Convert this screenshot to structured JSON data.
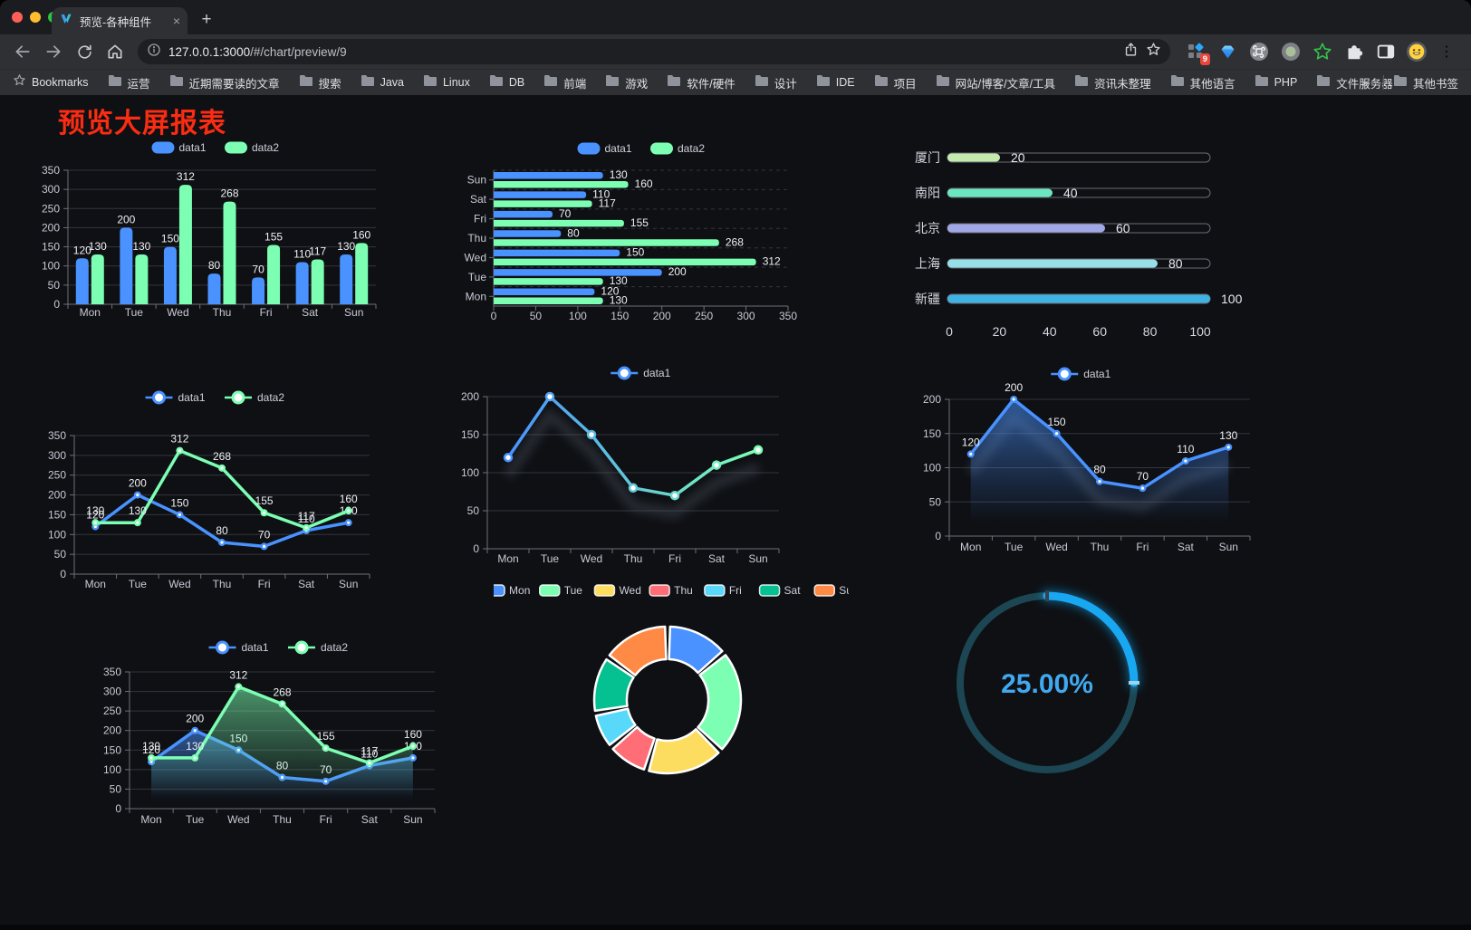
{
  "window": {
    "tab_title": "预览-各种组件",
    "url": {
      "host": "127.0.0.1:3000",
      "path": "/#/chart/preview/9"
    },
    "extension_badge": "9",
    "glyphs": {
      "new_tab": "+",
      "close_tab": "×",
      "kebab": "⋮"
    },
    "bookmarks": {
      "root": "Bookmarks",
      "folders": [
        "运营",
        "近期需要读的文章",
        "搜索",
        "Java",
        "Linux",
        "DB",
        "前端",
        "游戏",
        "软件/硬件",
        "设计",
        "IDE",
        "项目",
        "网站/博客/文章/工具",
        "资讯未整理",
        "其他语言",
        "PHP",
        "文件服务器"
      ],
      "overflow": "»",
      "other": "其他书签"
    }
  },
  "page": {
    "title": "预览大屏报表",
    "title_color": "#fa2c12"
  },
  "theme": {
    "page_bg": "#0e1014",
    "axis_label_color": "#c9cad4",
    "value_label_color": "#eef0f4",
    "grid_line_color": "#34353e",
    "axis_line_color": "#6e7079",
    "legend_text_color": "#cfd0da"
  },
  "chart_data": [
    {
      "id": "bar-grouped",
      "type": "bar",
      "categories": [
        "Mon",
        "Tue",
        "Wed",
        "Thu",
        "Fri",
        "Sat",
        "Sun"
      ],
      "series": [
        {
          "name": "data1",
          "color": "#4992ff",
          "values": [
            120,
            200,
            150,
            80,
            70,
            110,
            130
          ]
        },
        {
          "name": "data2",
          "color": "#7cffb2",
          "values": [
            130,
            130,
            312,
            268,
            155,
            117,
            160
          ]
        }
      ],
      "ylim": [
        0,
        350
      ],
      "yticks": [
        0,
        50,
        100,
        150,
        200,
        250,
        300,
        350
      ],
      "legend_position": "top",
      "value_labels": true
    },
    {
      "id": "bar-horizontal",
      "type": "hbar",
      "categories": [
        "Mon",
        "Tue",
        "Wed",
        "Thu",
        "Fri",
        "Sat",
        "Sun"
      ],
      "series": [
        {
          "name": "data1",
          "color": "#4992ff",
          "values": [
            120,
            200,
            150,
            80,
            70,
            110,
            130
          ]
        },
        {
          "name": "data2",
          "color": "#7cffb2",
          "values": [
            130,
            130,
            312,
            268,
            155,
            117,
            160
          ]
        }
      ],
      "xlim": [
        0,
        350
      ],
      "xticks": [
        0,
        50,
        100,
        150,
        200,
        250,
        300,
        350
      ],
      "legend_position": "top",
      "value_labels": true
    },
    {
      "id": "progress",
      "type": "progress",
      "xlim": [
        0,
        100
      ],
      "xticks": [
        0,
        20,
        40,
        60,
        80,
        100
      ],
      "items": [
        {
          "label": "厦门",
          "value": 20,
          "color": "#c4ebad"
        },
        {
          "label": "南阳",
          "value": 40,
          "color": "#6be6c1"
        },
        {
          "label": "北京",
          "value": 60,
          "color": "#a0a7e6"
        },
        {
          "label": "上海",
          "value": 80,
          "color": "#96dee8"
        },
        {
          "label": "新疆",
          "value": 100,
          "color": "#3fb1e3"
        }
      ]
    },
    {
      "id": "line-two",
      "type": "line",
      "categories": [
        "Mon",
        "Tue",
        "Wed",
        "Thu",
        "Fri",
        "Sat",
        "Sun"
      ],
      "series": [
        {
          "name": "data1",
          "color": "#4992ff",
          "values": [
            120,
            200,
            150,
            80,
            70,
            110,
            130
          ],
          "marker": "filled"
        },
        {
          "name": "data2",
          "color": "#7cffb2",
          "values": [
            130,
            130,
            312,
            268,
            155,
            117,
            160
          ],
          "marker": "filled"
        }
      ],
      "ylim": [
        0,
        350
      ],
      "yticks": [
        0,
        50,
        100,
        150,
        200,
        250,
        300,
        350
      ],
      "legend_position": "top",
      "value_labels": true
    },
    {
      "id": "line-gradient",
      "type": "line",
      "categories": [
        "Mon",
        "Tue",
        "Wed",
        "Thu",
        "Fri",
        "Sat",
        "Sun"
      ],
      "series": [
        {
          "name": "data1",
          "gradient": [
            "#4992ff",
            "#7cffb2"
          ],
          "values": [
            120,
            200,
            150,
            80,
            70,
            110,
            130
          ],
          "marker": "hollow",
          "shadow": true
        }
      ],
      "ylim": [
        0,
        200
      ],
      "yticks": [
        0,
        50,
        100,
        150,
        200
      ],
      "legend_position": "top",
      "value_labels": false
    },
    {
      "id": "area-single",
      "type": "line",
      "categories": [
        "Mon",
        "Tue",
        "Wed",
        "Thu",
        "Fri",
        "Sat",
        "Sun"
      ],
      "series": [
        {
          "name": "data1",
          "color": "#4992ff",
          "values": [
            120,
            200,
            150,
            80,
            70,
            110,
            130
          ],
          "marker": "filled",
          "area": true,
          "shadow": true
        }
      ],
      "ylim": [
        0,
        200
      ],
      "yticks": [
        0,
        50,
        100,
        150,
        200
      ],
      "legend_position": "top",
      "value_labels": true
    },
    {
      "id": "area-two",
      "type": "line",
      "categories": [
        "Mon",
        "Tue",
        "Wed",
        "Thu",
        "Fri",
        "Sat",
        "Sun"
      ],
      "series": [
        {
          "name": "data1",
          "color": "#4992ff",
          "values": [
            120,
            200,
            150,
            80,
            70,
            110,
            130
          ],
          "marker": "filled",
          "area": true
        },
        {
          "name": "data2",
          "color": "#7cffb2",
          "values": [
            130,
            130,
            312,
            268,
            155,
            117,
            160
          ],
          "marker": "filled",
          "area": true
        }
      ],
      "ylim": [
        0,
        350
      ],
      "yticks": [
        0,
        50,
        100,
        150,
        200,
        250,
        300,
        350
      ],
      "legend_position": "top",
      "value_labels": true
    },
    {
      "id": "donut",
      "type": "pie",
      "categories": [
        "Mon",
        "Tue",
        "Wed",
        "Thu",
        "Fri",
        "Sat",
        "Sun"
      ],
      "values": [
        120,
        200,
        150,
        80,
        70,
        110,
        130
      ],
      "colors": [
        "#4992ff",
        "#7cffb2",
        "#fddd60",
        "#ff6e76",
        "#58d9f9",
        "#05c091",
        "#ff8a45"
      ],
      "legend_position": "top",
      "inner_radius_ratio": 0.56
    },
    {
      "id": "gauge",
      "type": "gauge",
      "value": 25,
      "min": 0,
      "max": 100,
      "display": "25.00%",
      "progress_color": "#18a8f2",
      "track_color": "#1c4653",
      "text_color": "#41a9f0"
    }
  ]
}
